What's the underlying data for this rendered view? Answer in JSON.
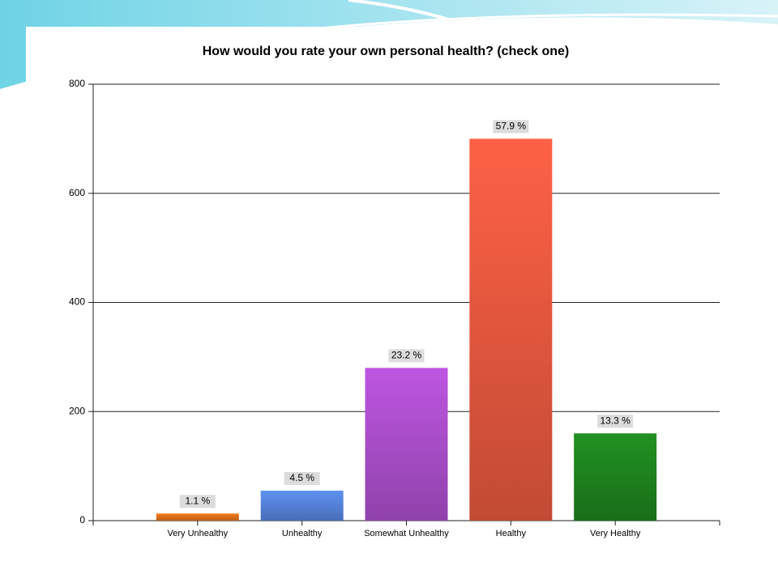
{
  "chart_data": {
    "type": "bar",
    "title": "How would you rate your own personal health? (check one)",
    "categories": [
      "Very Unhealthy",
      "Unhealthy",
      "Somewhat Unhealthy",
      "Healthy",
      "Very Healthy"
    ],
    "values": [
      13,
      55,
      280,
      700,
      160
    ],
    "percentages": [
      1.1,
      4.5,
      23.2,
      57.9,
      13.3
    ],
    "percentage_labels": [
      "1.1 %",
      "4.5 %",
      "23.2 %",
      "57.9 %",
      "13.3 %"
    ],
    "colors": [
      "#e8761a",
      "#5a8ae6",
      "#b452d6",
      "#f25c42",
      "#1f8a1f"
    ],
    "ylim": [
      0,
      800
    ],
    "yticks": [
      0,
      200,
      400,
      600,
      800
    ],
    "grid": true
  }
}
